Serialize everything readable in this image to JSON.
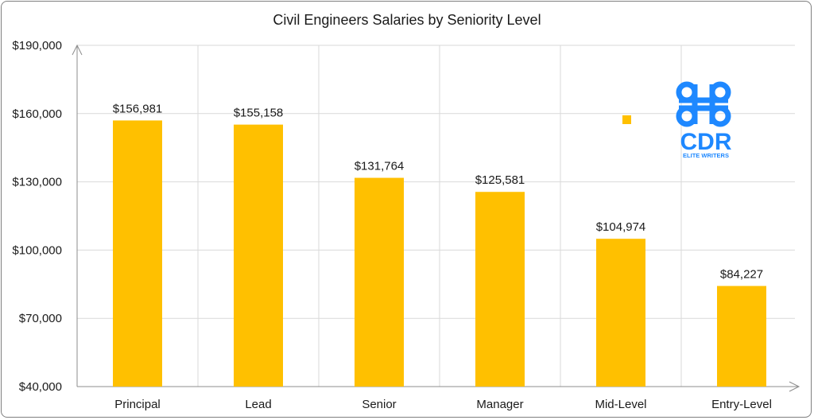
{
  "chart_data": {
    "type": "bar",
    "title": "Civil Engineers Salaries by Seniority Level",
    "xlabel": "",
    "ylabel": "",
    "categories": [
      "Principal",
      "Lead",
      "Senior",
      "Manager",
      "Mid-Level",
      "Entry-Level"
    ],
    "values": [
      156981,
      155158,
      131764,
      125581,
      104974,
      84227
    ],
    "data_labels": [
      "$156,981",
      "$155,158",
      "$131,764",
      "$125,581",
      "$104,974",
      "$84,227"
    ],
    "ylim": [
      40000,
      190000
    ],
    "yticks": [
      40000,
      70000,
      100000,
      130000,
      160000,
      190000
    ],
    "ytick_labels": [
      "$40,000",
      "$70,000",
      "$100,000",
      "$130,000",
      "$160,000",
      "$190,000"
    ],
    "grid": true,
    "legend": "top-right",
    "bar_color": "#FFC000"
  },
  "logo": {
    "text": "CDR",
    "subtext": "ELITE WRITERS",
    "color": "#1E88FF",
    "icon": "command-key-icon"
  }
}
